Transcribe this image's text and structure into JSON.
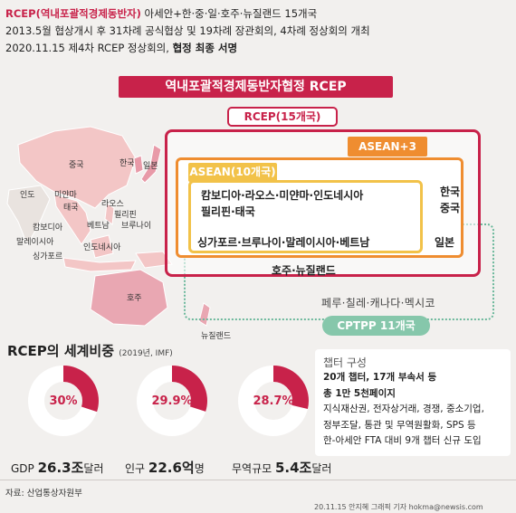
{
  "header": {
    "line1_red": "RCEP(역내포괄적경제동반자)",
    "line1_rest": " 아세안+한·중·일·호주·뉴질랜드 15개국",
    "line2": "2013.5월 협상개시 후 31차례 공식협상 및 19차례 장관회의, 4차례 정상회의 개최",
    "line3_a": "2020.11.15 제4차 RCEP 정상회의, ",
    "line3_b": "협정 최종 서명"
  },
  "banner": "역내포괄적경제동반자협정 RCEP",
  "map": {
    "countries": [
      {
        "name": "중국"
      },
      {
        "name": "한국"
      },
      {
        "name": "일본"
      },
      {
        "name": "인도"
      },
      {
        "name": "미얀마"
      },
      {
        "name": "태국"
      },
      {
        "name": "라오스"
      },
      {
        "name": "필리핀"
      },
      {
        "name": "베트남"
      },
      {
        "name": "캄보디아"
      },
      {
        "name": "브루나이"
      },
      {
        "name": "말레이시아"
      },
      {
        "name": "싱가포르"
      },
      {
        "name": "인도네시아"
      },
      {
        "name": "호주"
      },
      {
        "name": "뉴질랜드"
      }
    ]
  },
  "diagram": {
    "rcep_label": "RCEP(15개국)",
    "asean3_label": "ASEAN+3",
    "asean_label": "ASEAN(10개국)",
    "asean_line1": "캄보디아·라오스·미얀마·인도네시아",
    "asean_line2": "필리핀·태국",
    "asean_line3": "싱가포르·브루나이·말레이시아·베트남",
    "korea": "한국",
    "china": "중국",
    "japan": "일본",
    "aunz": "호주·뉴질랜드",
    "cptpp_others": "페루·칠레·캐나다·멕시코",
    "cptpp_label": "CPTPP 11개국"
  },
  "share": {
    "title": "RCEP의 세계비중",
    "note": "(2019년, IMF)",
    "items": [
      {
        "percent_label": "30%",
        "value": 30,
        "metric": "GDP",
        "amount": "26.3조",
        "unit": "달러"
      },
      {
        "percent_label": "29.9%",
        "value": 29.9,
        "metric": "인구",
        "amount": "22.6억",
        "unit": "명"
      },
      {
        "percent_label": "28.7%",
        "value": 28.7,
        "metric": "무역규모",
        "amount": "5.4조",
        "unit": "달러"
      }
    ]
  },
  "chapters": {
    "title": "챕터 구성",
    "line1": "20개 챕터, 17개 부속서 등",
    "line2": "총 1만 5천페이지",
    "line3": "지식재산권, 전자상거래, 경쟁, 중소기업,",
    "line4": "정부조달, 통관 및 무역원활화, SPS 등",
    "line5": "한-아세안 FTA 대비 9개 챕터 신규 도입"
  },
  "source": "자료: 산업통상자원부",
  "credit": "20.11.15 안지혜 그래픽 기자 hokma@newsis.com",
  "colors": {
    "accent": "#c8224a",
    "orange": "#ef8d30",
    "yellow": "#f2c249",
    "green": "#86c7ab"
  }
}
